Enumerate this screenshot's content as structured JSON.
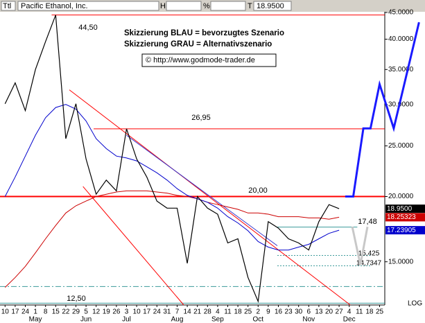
{
  "chart_data": {
    "type": "line",
    "header": [
      "Ttl",
      "Pacific Ethanol, Inc.",
      "H",
      "%",
      "T",
      "18.9500"
    ],
    "annotations": [
      "Skizzierung BLAU = bevorzugtes Szenario",
      "Skizzierung GRAU = Alternativszenario",
      "© http://www.godmode-trader.de"
    ],
    "log_scale": true,
    "scale_label": "LOG",
    "ylim": [
      12.4,
      45
    ],
    "yticks": [
      {
        "value": 45,
        "label": "45.0000"
      },
      {
        "value": 40,
        "label": "40.0000"
      },
      {
        "value": 35,
        "label": "35.0000"
      },
      {
        "value": 30,
        "label": "30.0000"
      },
      {
        "value": 25,
        "label": "25.0000"
      },
      {
        "value": 20,
        "label": "20.0000"
      },
      {
        "value": 15,
        "label": "15.0000"
      }
    ],
    "categories": [
      "10",
      "17",
      "24",
      "1",
      "8",
      "15",
      "22",
      "29",
      "5",
      "12",
      "19",
      "26",
      "3",
      "10",
      "17",
      "24",
      "31",
      "7",
      "14",
      "21",
      "28",
      "4",
      "11",
      "18",
      "25",
      "2",
      "9",
      "16",
      "23",
      "30",
      "6",
      "13",
      "20",
      "27",
      "4",
      "11",
      "18",
      "25"
    ],
    "months": [
      {
        "value": 3,
        "label": "May"
      },
      {
        "value": 8,
        "label": "Jun"
      },
      {
        "value": 12,
        "label": "Jul"
      },
      {
        "value": 17,
        "label": "Aug"
      },
      {
        "value": 21,
        "label": "Sep"
      },
      {
        "value": 25,
        "label": "Oct"
      },
      {
        "value": 30,
        "label": "Nov"
      },
      {
        "value": 34,
        "label": "Dec"
      }
    ],
    "series": [
      {
        "color": "#cc0000",
        "last_label": "18.25323",
        "values": [
          13.4,
          14.0,
          14.7,
          15.6,
          16.6,
          17.6,
          18.6,
          19.2,
          19.6,
          20.0,
          20.2,
          20.4,
          20.5,
          20.5,
          20.5,
          20.4,
          20.3,
          20.1,
          20.0,
          19.8,
          19.5,
          19.3,
          19.1,
          18.9,
          18.6,
          18.6,
          18.5,
          18.3,
          18.3,
          18.3,
          18.2,
          18.2,
          18.1,
          18.25323,
          null,
          null,
          null,
          null
        ]
      },
      {
        "color": "#0000cc",
        "last_label": "17.23905",
        "values": [
          20.0,
          21.8,
          23.9,
          26.2,
          28.3,
          29.6,
          30.0,
          29.4,
          27.9,
          25.8,
          24.7,
          23.9,
          23.7,
          23.4,
          22.8,
          22.2,
          21.5,
          20.7,
          20.1,
          19.8,
          19.5,
          19.0,
          18.3,
          17.8,
          17.2,
          16.4,
          16.0,
          15.8,
          15.8,
          16.0,
          16.2,
          16.6,
          17.0,
          17.23905,
          null,
          null,
          null,
          null
        ]
      },
      {
        "color": "#000000",
        "last_label": "18.9500",
        "values": [
          30.1,
          33.0,
          29.2,
          35.0,
          39.6,
          44.5,
          25.8,
          30.1,
          23.6,
          20.2,
          21.5,
          20.5,
          26.95,
          23.6,
          21.8,
          19.6,
          19.0,
          19.0,
          14.9,
          20.0,
          19.0,
          18.5,
          16.3,
          16.6,
          14.0,
          12.6,
          17.9,
          17.4,
          16.6,
          16.3,
          15.8,
          17.9,
          19.3,
          18.95,
          null,
          null,
          null,
          null
        ]
      }
    ],
    "levels": [
      {
        "value": 44.5,
        "label": "44,50",
        "x": [
          4.6,
          37.5
        ],
        "color": "#ff0000",
        "width": 1
      },
      {
        "value": 26.95,
        "label": "26,95",
        "x": [
          8.75,
          37.5
        ],
        "color": "#ff0000",
        "width": 1
      },
      {
        "value": 20,
        "label": "20,00",
        "x": [
          -0.5,
          37.5
        ],
        "color": "#ff0000",
        "width": 2
      },
      {
        "value": 17.48,
        "label": "17,48",
        "x": [
          26.9,
          34.8
        ],
        "color": "#3a9a9a",
        "width": 1
      },
      {
        "value": 15.425,
        "label": "15,425",
        "x": [
          26.9,
          36.2
        ],
        "color": "#3a9a9a",
        "width": 1,
        "dash": "2,2"
      },
      {
        "value": 14.7347,
        "label": "14,7347",
        "x": [
          26.9,
          36.2
        ],
        "color": "#3a9a9a",
        "width": 1,
        "dash": "2,2"
      },
      {
        "value": 13.45,
        "x": [
          -0.5,
          37.5
        ],
        "color": "#3a9a9a",
        "width": 1,
        "dash": "8,3,2,3"
      },
      {
        "value": 12.5,
        "label": "12,50",
        "x": [
          -0.5,
          37.5
        ],
        "color": "#3a9a9a",
        "width": 1
      }
    ],
    "trendlines": [
      {
        "color": "#ff0000",
        "width": 1,
        "x": [
          6.35,
          34.1
        ],
        "values": [
          32.0,
          12.4
        ]
      },
      {
        "color": "#ff0000",
        "width": 1,
        "x": [
          7.7,
          17.65
        ],
        "values": [
          20.9,
          12.4
        ]
      },
      {
        "color": "#3333cc",
        "width": 1,
        "x": [
          12.0,
          26.9
        ],
        "values": [
          26.2,
          16.1
        ]
      },
      {
        "color": "#c8c8c8",
        "width": 3,
        "x": [
          34.3,
          35.1,
          35.8
        ],
        "values": [
          17.5,
          14.8,
          17.5
        ]
      },
      {
        "color": "#1a1aff",
        "width": 3,
        "x": [
          33.6,
          34.4,
          35.4,
          36.1,
          37.0,
          38.4,
          40.9
        ],
        "values": [
          20,
          20,
          27,
          27,
          32.8,
          27,
          43.1
        ]
      }
    ]
  }
}
